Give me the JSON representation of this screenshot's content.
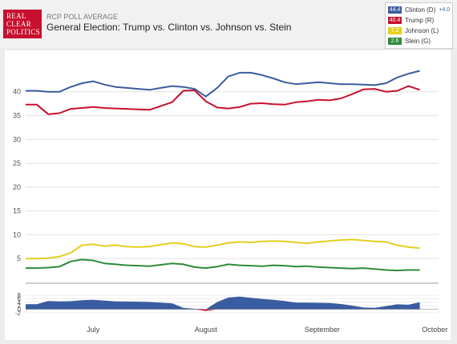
{
  "header": {
    "logo_lines": [
      "REAL",
      "CLEAR",
      "POLITICS"
    ],
    "subtitle": "RCP POLL AVERAGE",
    "title": "General Election: Trump vs. Clinton vs. Johnson vs. Stein"
  },
  "legend": [
    {
      "value": "44.4",
      "label": "Clinton (D)",
      "lead": "+4.0",
      "color": "#3a5ca0"
    },
    {
      "value": "40.4",
      "label": "Trump (R)",
      "lead": "",
      "color": "#c8102e"
    },
    {
      "value": "7.2",
      "label": "Johnson (L)",
      "lead": "",
      "color": "#e4cf1f"
    },
    {
      "value": "2.6",
      "label": "Stein (G)",
      "lead": "",
      "color": "#2e8b3a"
    }
  ],
  "chart_data": [
    {
      "type": "line",
      "x": [
        0,
        3,
        6,
        9,
        12,
        15,
        18,
        21,
        24,
        27,
        30,
        33,
        36,
        39,
        42,
        45,
        48,
        51,
        54,
        57,
        60,
        63,
        66,
        69,
        72,
        75,
        78,
        81,
        84,
        87,
        90,
        93,
        96,
        99,
        102,
        105
      ],
      "xlabel": "",
      "ylabel": "",
      "ylim": [
        0,
        47
      ],
      "yticks": [
        5,
        10,
        15,
        20,
        25,
        30,
        35,
        40
      ],
      "xticks": [
        {
          "label": "July",
          "x": 18
        },
        {
          "label": "August",
          "x": 48
        },
        {
          "label": "September",
          "x": 79
        },
        {
          "label": "October",
          "x": 109
        }
      ],
      "grid": true,
      "series": [
        {
          "name": "Clinton (D)",
          "color": "#3a5ca0",
          "values": [
            40.2,
            40.2,
            40.0,
            40.0,
            41.0,
            41.8,
            42.2,
            41.5,
            41.0,
            40.8,
            40.6,
            40.4,
            40.8,
            41.2,
            41.0,
            40.6,
            39.0,
            40.8,
            43.2,
            44.0,
            44.0,
            43.5,
            42.8,
            42.0,
            41.6,
            41.8,
            42.0,
            41.8,
            41.6,
            41.6,
            41.5,
            41.4,
            41.8,
            43.0,
            43.8,
            44.4
          ]
        },
        {
          "name": "Trump (R)",
          "color": "#c8102e",
          "values": [
            37.3,
            37.3,
            35.3,
            35.5,
            36.4,
            36.6,
            36.8,
            36.6,
            36.5,
            36.4,
            36.3,
            36.2,
            37.0,
            37.8,
            40.2,
            40.3,
            38.0,
            36.7,
            36.5,
            36.8,
            37.5,
            37.6,
            37.4,
            37.3,
            37.8,
            38.0,
            38.3,
            38.2,
            38.6,
            39.5,
            40.5,
            40.6,
            40.0,
            40.2,
            41.2,
            40.4
          ]
        },
        {
          "name": "Johnson (L)",
          "color": "#e4cf1f",
          "values": [
            5.0,
            5.0,
            5.1,
            5.4,
            6.2,
            7.8,
            8.0,
            7.6,
            7.8,
            7.5,
            7.4,
            7.5,
            7.9,
            8.3,
            8.1,
            7.5,
            7.4,
            7.8,
            8.3,
            8.5,
            8.4,
            8.6,
            8.7,
            8.6,
            8.4,
            8.2,
            8.5,
            8.7,
            8.9,
            9.0,
            8.8,
            8.6,
            8.5,
            7.8,
            7.4,
            7.2
          ]
        },
        {
          "name": "Stein (G)",
          "color": "#2e8b3a",
          "values": [
            3.0,
            3.0,
            3.1,
            3.3,
            4.4,
            4.8,
            4.6,
            4.0,
            3.8,
            3.6,
            3.5,
            3.4,
            3.7,
            4.0,
            3.8,
            3.2,
            3.0,
            3.3,
            3.8,
            3.6,
            3.5,
            3.4,
            3.6,
            3.5,
            3.3,
            3.4,
            3.2,
            3.1,
            3.0,
            2.9,
            3.0,
            2.8,
            2.6,
            2.5,
            2.6,
            2.6
          ]
        }
      ]
    },
    {
      "type": "area",
      "x": [
        0,
        3,
        6,
        9,
        12,
        15,
        18,
        21,
        24,
        27,
        30,
        33,
        36,
        39,
        42,
        45,
        48,
        51,
        54,
        57,
        60,
        63,
        66,
        69,
        72,
        75,
        78,
        81,
        84,
        87,
        90,
        93,
        96,
        99,
        102,
        105
      ],
      "ylim": [
        -2,
        8
      ],
      "yticks": [
        8,
        6,
        4,
        2,
        0,
        -2
      ],
      "series": [
        {
          "name": "Clinton (D)",
          "color": "#3a5ca0",
          "negative_color": "#c8102e",
          "values": [
            2.9,
            2.9,
            4.7,
            4.5,
            4.6,
            5.2,
            5.4,
            4.9,
            4.5,
            4.4,
            4.3,
            4.2,
            3.8,
            3.4,
            0.8,
            0.3,
            -1.0,
            4.1,
            6.7,
            7.2,
            6.5,
            5.9,
            5.4,
            4.7,
            3.8,
            3.8,
            3.7,
            3.6,
            3.0,
            2.1,
            1.0,
            0.8,
            1.8,
            2.8,
            2.6,
            4.0
          ]
        }
      ]
    }
  ]
}
